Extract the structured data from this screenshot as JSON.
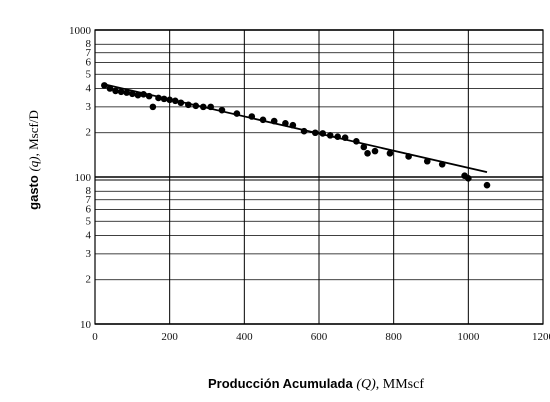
{
  "chart_data": {
    "type": "scatter",
    "title": "",
    "xlabel": {
      "bold": "Producción Acumulada ",
      "symbol": "(Q)",
      "unit": ", MMscf"
    },
    "ylabel": {
      "bold": "gasto ",
      "symbol": "(q)",
      "unit": ", Mscf/D"
    },
    "x_scale": "linear",
    "y_scale": "log",
    "xlim": [
      0,
      1200
    ],
    "ylim": [
      10,
      1000
    ],
    "x_ticks": [
      0,
      200,
      400,
      600,
      800,
      1000,
      1200
    ],
    "x_tick_labels": [
      "0",
      "200",
      "400",
      "600",
      "800",
      "1000",
      "1200"
    ],
    "y_major_ticks": [
      10,
      100,
      1000
    ],
    "y_major_labels": [
      "10",
      "100",
      "1000"
    ],
    "y_minor_ticks": [
      20,
      30,
      40,
      50,
      60,
      70,
      80,
      200,
      300,
      400,
      500,
      600,
      700,
      800
    ],
    "y_minor_labels": [
      "2",
      "3",
      "4",
      "5",
      "6",
      "7",
      "8",
      "2",
      "3",
      "4",
      "5",
      "6",
      "7",
      "8"
    ],
    "grid": true,
    "series": [
      {
        "kind": "points",
        "points": [
          [
            25,
            420
          ],
          [
            40,
            400
          ],
          [
            55,
            385
          ],
          [
            70,
            380
          ],
          [
            85,
            375
          ],
          [
            100,
            368
          ],
          [
            115,
            360
          ],
          [
            130,
            365
          ],
          [
            145,
            355
          ],
          [
            155,
            300
          ],
          [
            170,
            345
          ],
          [
            185,
            340
          ],
          [
            200,
            335
          ],
          [
            215,
            330
          ],
          [
            230,
            320
          ],
          [
            250,
            310
          ],
          [
            270,
            305
          ],
          [
            290,
            300
          ],
          [
            310,
            300
          ],
          [
            340,
            285
          ],
          [
            380,
            270
          ],
          [
            420,
            258
          ],
          [
            450,
            245
          ],
          [
            480,
            240
          ],
          [
            510,
            232
          ],
          [
            530,
            225
          ],
          [
            560,
            205
          ],
          [
            590,
            200
          ],
          [
            610,
            198
          ],
          [
            630,
            192
          ],
          [
            650,
            188
          ],
          [
            670,
            185
          ],
          [
            700,
            175
          ],
          [
            720,
            160
          ],
          [
            730,
            145
          ],
          [
            750,
            150
          ],
          [
            790,
            145
          ],
          [
            840,
            138
          ],
          [
            890,
            128
          ],
          [
            930,
            122
          ],
          [
            990,
            102
          ],
          [
            1000,
            98
          ],
          [
            1050,
            88
          ]
        ]
      },
      {
        "kind": "trend-line",
        "points": [
          [
            20,
            430
          ],
          [
            1050,
            108
          ]
        ]
      }
    ]
  }
}
